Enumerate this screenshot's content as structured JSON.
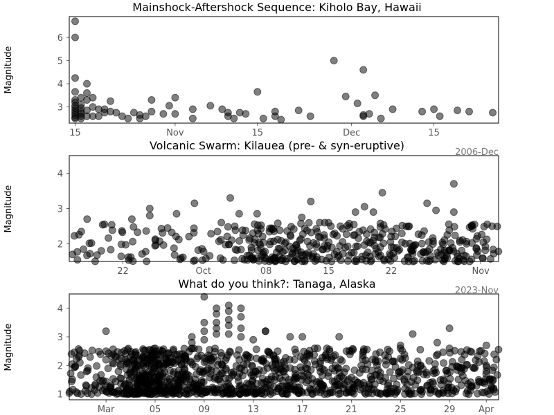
{
  "chart_data": [
    {
      "type": "scatter",
      "title": "Mainshock-Aftershock Sequence: Kiholo Bay, Hawaii",
      "ylabel": "Magnitude",
      "xlabel": "",
      "offset_label": "2006-Dec",
      "x_is_date": true,
      "xlim": [
        "2006-10-14",
        "2006-12-26"
      ],
      "ylim": [
        2.3,
        6.9
      ],
      "yticks": [
        3,
        4,
        5,
        6
      ],
      "xticks": [
        {
          "value": "2006-10-15",
          "label": "15"
        },
        {
          "value": "2006-11-01",
          "label": "Nov"
        },
        {
          "value": "2006-11-15",
          "label": "15"
        },
        {
          "value": "2006-12-01",
          "label": "Dec"
        },
        {
          "value": "2006-12-15",
          "label": "15"
        }
      ],
      "grid": false,
      "marker_color": "#000000",
      "marker_opacity": 0.5,
      "points": [
        [
          "2006-10-15",
          6.7
        ],
        [
          "2006-10-15",
          6.0
        ],
        [
          "2006-10-15",
          4.25
        ],
        [
          "2006-10-15",
          3.65
        ],
        [
          "2006-10-15",
          3.3
        ],
        [
          "2006-10-15",
          3.2
        ],
        [
          "2006-10-15",
          3.05
        ],
        [
          "2006-10-15",
          2.95
        ],
        [
          "2006-10-15",
          2.85
        ],
        [
          "2006-10-15",
          2.75
        ],
        [
          "2006-10-15",
          2.65
        ],
        [
          "2006-10-15",
          2.55
        ],
        [
          "2006-10-15",
          2.5
        ],
        [
          "2006-10-16",
          3.4
        ],
        [
          "2006-10-16",
          3.1
        ],
        [
          "2006-10-16",
          2.95
        ],
        [
          "2006-10-16",
          2.8
        ],
        [
          "2006-10-16",
          2.7
        ],
        [
          "2006-10-16",
          2.6
        ],
        [
          "2006-10-16",
          2.5
        ],
        [
          "2006-10-17",
          4.0
        ],
        [
          "2006-10-17",
          3.6
        ],
        [
          "2006-10-17",
          3.3
        ],
        [
          "2006-10-17",
          2.85
        ],
        [
          "2006-10-17",
          2.6
        ],
        [
          "2006-10-18",
          3.4
        ],
        [
          "2006-10-18",
          3.0
        ],
        [
          "2006-10-18",
          2.6
        ],
        [
          "2006-10-19",
          2.9
        ],
        [
          "2006-10-19",
          2.6
        ],
        [
          "2006-10-20",
          2.9
        ],
        [
          "2006-10-20",
          2.75
        ],
        [
          "2006-10-21",
          3.25
        ],
        [
          "2006-10-21",
          2.8
        ],
        [
          "2006-10-22",
          2.75
        ],
        [
          "2006-10-23",
          2.6
        ],
        [
          "2006-10-24",
          2.5
        ],
        [
          "2006-10-25",
          2.75
        ],
        [
          "2006-10-26",
          2.65
        ],
        [
          "2006-10-26",
          2.5
        ],
        [
          "2006-10-27",
          2.6
        ],
        [
          "2006-10-28",
          2.8
        ],
        [
          "2006-10-28",
          3.3
        ],
        [
          "2006-10-30",
          2.7
        ],
        [
          "2006-10-31",
          3.05
        ],
        [
          "2006-11-01",
          2.7
        ],
        [
          "2006-11-01",
          3.4
        ],
        [
          "2006-11-04",
          2.9
        ],
        [
          "2006-11-04",
          2.5
        ],
        [
          "2006-11-07",
          3.05
        ],
        [
          "2006-11-09",
          2.9
        ],
        [
          "2006-11-10",
          2.75
        ],
        [
          "2006-11-10",
          2.6
        ],
        [
          "2006-11-11",
          2.5
        ],
        [
          "2006-11-12",
          2.75
        ],
        [
          "2006-11-13",
          2.7
        ],
        [
          "2006-11-15",
          3.65
        ],
        [
          "2006-11-16",
          2.5
        ],
        [
          "2006-11-18",
          2.8
        ],
        [
          "2006-11-18",
          2.6
        ],
        [
          "2006-11-19",
          2.45
        ],
        [
          "2006-11-22",
          2.85
        ],
        [
          "2006-11-24",
          2.6
        ],
        [
          "2006-11-28",
          5.0
        ],
        [
          "2006-11-30",
          3.45
        ],
        [
          "2006-12-02",
          3.15
        ],
        [
          "2006-12-03",
          4.6
        ],
        [
          "2006-12-03",
          2.65
        ],
        [
          "2006-12-03",
          2.6
        ],
        [
          "2006-12-04",
          2.7
        ],
        [
          "2006-12-05",
          3.5
        ],
        [
          "2006-12-06",
          2.5
        ],
        [
          "2006-12-08",
          2.9
        ],
        [
          "2006-12-13",
          2.8
        ],
        [
          "2006-12-15",
          2.9
        ],
        [
          "2006-12-16",
          2.6
        ],
        [
          "2006-12-19",
          2.85
        ],
        [
          "2006-12-21",
          2.8
        ],
        [
          "2006-12-25",
          2.75
        ]
      ]
    },
    {
      "type": "scatter",
      "title": "Volcanic Swarm: Kilauea (pre- & syn-eruptive)",
      "ylabel": "Magnitude",
      "xlabel": "",
      "offset_label": "2023-Nov",
      "x_is_date": true,
      "xlim": [
        "2023-09-16",
        "2023-11-03"
      ],
      "ylim": [
        1.5,
        4.5
      ],
      "yticks": [
        2,
        3,
        4
      ],
      "xticks": [
        {
          "value": "2023-09-22",
          "label": "22"
        },
        {
          "value": "2023-10-01",
          "label": "Oct"
        },
        {
          "value": "2023-10-08",
          "label": "08"
        },
        {
          "value": "2023-10-15",
          "label": "15"
        },
        {
          "value": "2023-10-22",
          "label": "22"
        },
        {
          "value": "2023-11-01",
          "label": "Nov"
        }
      ],
      "grid": false,
      "marker_color": "#000000",
      "marker_opacity": 0.5,
      "generated_count": 420,
      "generated_weights": [
        0.6,
        0.6,
        0.6,
        0.6,
        0.6,
        0.6,
        0.6,
        0.6,
        0.6,
        0.6,
        0.6,
        0.6,
        0.6,
        0.6,
        0.6,
        0.6,
        0.6,
        1.0,
        1.0,
        1.4,
        2.4,
        2.8,
        2.6,
        2.4,
        2.2,
        2.4,
        2.0,
        2.0,
        1.8,
        1.6,
        1.6,
        1.8,
        1.6,
        1.8,
        2.0,
        1.8,
        1.6,
        1.6,
        1.8,
        1.6,
        1.6,
        1.8,
        1.8,
        1.8,
        1.6,
        1.6,
        1.4,
        1.0
      ],
      "generated_mag_range": [
        1.5,
        2.6
      ],
      "points": [
        [
          "2023-09-18",
          2.7
        ],
        [
          "2023-09-23",
          2.7
        ],
        [
          "2023-09-25",
          3.0
        ],
        [
          "2023-09-25",
          2.8
        ],
        [
          "2023-09-27",
          2.45
        ],
        [
          "2023-09-28",
          2.85
        ],
        [
          "2023-09-30",
          3.15
        ],
        [
          "2023-10-03",
          2.6
        ],
        [
          "2023-10-04",
          3.3
        ],
        [
          "2023-10-05",
          2.85
        ],
        [
          "2023-10-07",
          2.85
        ],
        [
          "2023-10-12",
          2.75
        ],
        [
          "2023-10-13",
          3.2
        ],
        [
          "2023-10-14",
          2.6
        ],
        [
          "2023-10-18",
          2.9
        ],
        [
          "2023-10-19",
          3.05
        ],
        [
          "2023-10-20",
          2.9
        ],
        [
          "2023-10-21",
          3.45
        ],
        [
          "2023-10-24",
          2.5
        ],
        [
          "2023-10-26",
          3.15
        ],
        [
          "2023-10-27",
          2.95
        ],
        [
          "2023-10-29",
          3.7
        ],
        [
          "2023-10-29",
          2.9
        ],
        [
          "2023-10-31",
          2.5
        ]
      ]
    },
    {
      "type": "scatter",
      "title": "What do you think?: Tanaga, Alaska",
      "ylabel": "Magnitude",
      "xlabel": "",
      "offset_label": "",
      "x_is_date": true,
      "xlim": [
        "2022-02-26",
        "2022-04-02"
      ],
      "ylim": [
        0.8,
        4.5
      ],
      "yticks": [
        1,
        2,
        3,
        4
      ],
      "xticks": [
        {
          "value": "2022-03-01",
          "label": "Mar"
        },
        {
          "value": "2022-03-05",
          "label": "05"
        },
        {
          "value": "2022-03-09",
          "label": "09"
        },
        {
          "value": "2022-03-13",
          "label": "13"
        },
        {
          "value": "2022-03-17",
          "label": "17"
        },
        {
          "value": "2022-03-21",
          "label": "21"
        },
        {
          "value": "2022-03-25",
          "label": "25"
        },
        {
          "value": "2022-03-29",
          "label": "29"
        },
        {
          "value": "2022-04-01",
          "label": "Apr"
        }
      ],
      "grid": false,
      "marker_color": "#000000",
      "marker_opacity": 0.5,
      "generated_count": 1100,
      "generated_weights": [
        1.2,
        1.0,
        0.6,
        0.6,
        0.8,
        0.8,
        1.2,
        1.4,
        1.4,
        3.0,
        3.0,
        4.0,
        4.0,
        3.8,
        3.8,
        3.0,
        3.0,
        2.6,
        2.6,
        1.8,
        1.8,
        1.8,
        1.8,
        1.8,
        1.8,
        1.6,
        1.6,
        1.6,
        1.6,
        1.6,
        1.6,
        1.6,
        1.6,
        1.6,
        1.6,
        1.6,
        1.6,
        1.4,
        1.4,
        1.4,
        1.4,
        1.4,
        1.4,
        1.4,
        1.2,
        1.2,
        1.2,
        1.2,
        1.2,
        1.2,
        1.2,
        1.2,
        1.2,
        1.0,
        1.0,
        1.0,
        1.0,
        1.0,
        1.0,
        1.0,
        1.0,
        1.0,
        1.0,
        1.0,
        1.0,
        1.0,
        1.0,
        1.0,
        1.0,
        1.0
      ],
      "generated_mag_range": [
        1.0,
        2.6
      ],
      "points": [
        [
          "2022-03-01",
          3.2
        ],
        [
          "2022-03-01",
          2.5
        ],
        [
          "2022-03-01",
          2.2
        ],
        [
          "2022-03-03",
          2.3
        ],
        [
          "2022-03-04",
          2.0
        ],
        [
          "2022-03-05",
          2.5
        ],
        [
          "2022-03-06",
          2.1
        ],
        [
          "2022-03-07",
          2.4
        ],
        [
          "2022-03-08",
          2.8
        ],
        [
          "2022-03-08",
          2.6
        ],
        [
          "2022-03-08",
          3.0
        ],
        [
          "2022-03-09",
          4.4
        ],
        [
          "2022-03-09",
          3.5
        ],
        [
          "2022-03-09",
          3.2
        ],
        [
          "2022-03-09",
          2.9
        ],
        [
          "2022-03-10",
          4.0
        ],
        [
          "2022-03-10",
          3.8
        ],
        [
          "2022-03-10",
          3.5
        ],
        [
          "2022-03-10",
          3.3
        ],
        [
          "2022-03-10",
          3.1
        ],
        [
          "2022-03-11",
          4.1
        ],
        [
          "2022-03-11",
          3.9
        ],
        [
          "2022-03-11",
          3.6
        ],
        [
          "2022-03-11",
          3.4
        ],
        [
          "2022-03-11",
          3.1
        ],
        [
          "2022-03-12",
          4.0
        ],
        [
          "2022-03-12",
          3.7
        ],
        [
          "2022-03-12",
          3.3
        ],
        [
          "2022-03-12",
          3.0
        ],
        [
          "2022-03-13",
          2.9
        ],
        [
          "2022-03-14",
          3.2
        ],
        [
          "2022-03-14",
          3.2
        ],
        [
          "2022-03-15",
          2.5
        ],
        [
          "2022-03-16",
          3.0
        ],
        [
          "2022-03-17",
          3.0
        ],
        [
          "2022-03-18",
          2.6
        ],
        [
          "2022-03-19",
          2.6
        ],
        [
          "2022-03-20",
          3.0
        ],
        [
          "2022-03-21",
          2.5
        ],
        [
          "2022-03-22",
          2.5
        ],
        [
          "2022-03-23",
          2.4
        ],
        [
          "2022-03-24",
          2.3
        ],
        [
          "2022-03-25",
          2.6
        ],
        [
          "2022-03-25",
          2.7
        ],
        [
          "2022-03-26",
          3.1
        ],
        [
          "2022-03-28",
          2.8
        ],
        [
          "2022-03-29",
          3.3
        ],
        [
          "2022-03-29",
          2.6
        ],
        [
          "2022-03-30",
          2.2
        ],
        [
          "2022-03-30",
          1.9
        ],
        [
          "2022-03-31",
          1.9
        ],
        [
          "2022-04-01",
          2.7
        ],
        [
          "2022-04-01",
          2.0
        ],
        [
          "2022-04-01",
          1.8
        ]
      ]
    }
  ]
}
